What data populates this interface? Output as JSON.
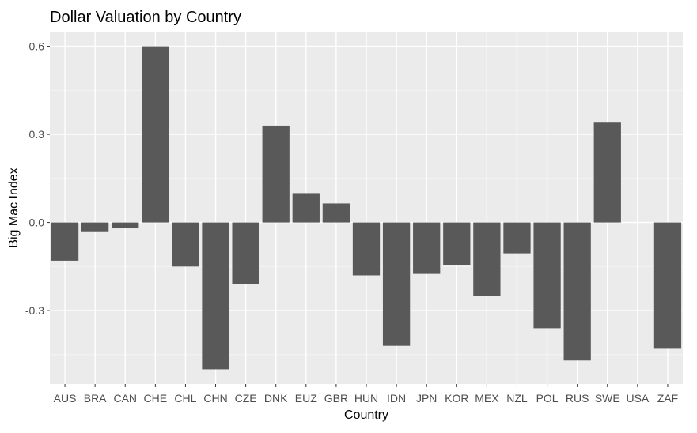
{
  "chart_data": {
    "type": "bar",
    "title": "Dollar Valuation by Country",
    "xlabel": "Country",
    "ylabel": "Big Mac Index",
    "categories": [
      "AUS",
      "BRA",
      "CAN",
      "CHE",
      "CHL",
      "CHN",
      "CZE",
      "DNK",
      "EUZ",
      "GBR",
      "HUN",
      "IDN",
      "JPN",
      "KOR",
      "MEX",
      "NZL",
      "POL",
      "RUS",
      "SWE",
      "USA",
      "ZAF"
    ],
    "values": [
      -0.13,
      -0.03,
      -0.02,
      0.6,
      -0.15,
      -0.5,
      -0.21,
      0.33,
      0.1,
      0.065,
      -0.18,
      -0.42,
      -0.175,
      -0.145,
      -0.25,
      -0.105,
      -0.36,
      -0.47,
      0.34,
      0,
      -0.43
    ],
    "yticks": [
      -0.3,
      0.0,
      0.3,
      0.6
    ],
    "ytick_labels": [
      "-0.3",
      "0.0",
      "0.3",
      "0.6"
    ],
    "ylim": [
      -0.55,
      0.65
    ],
    "grid": true,
    "legend": "none",
    "colors": {
      "bar": "#595959",
      "panel": "#ebebeb",
      "grid_major": "#ffffff",
      "grid_minor": "#f5f5f5"
    }
  }
}
